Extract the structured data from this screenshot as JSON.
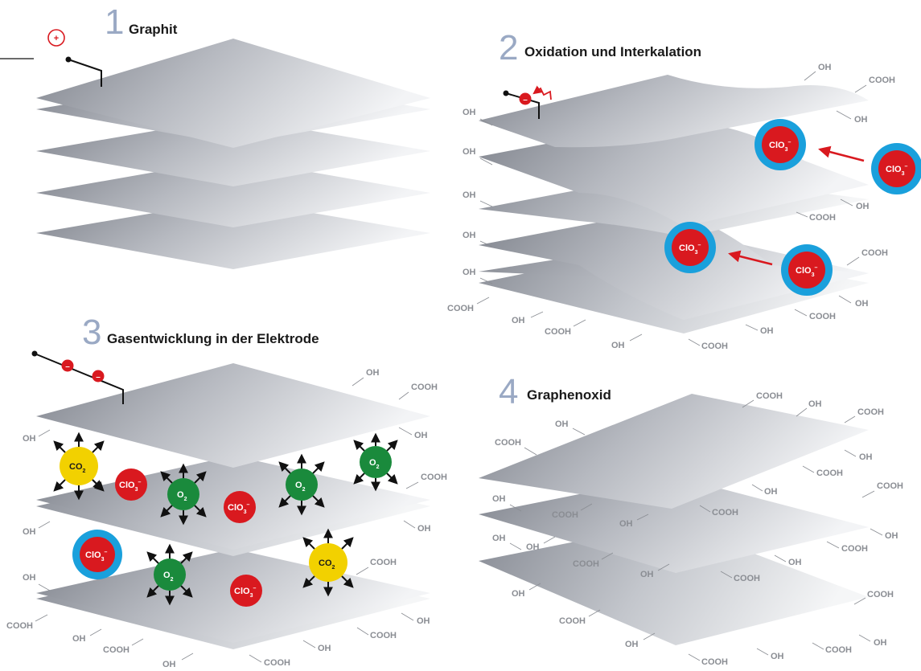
{
  "colors": {
    "accent_number": "#9aa9c4",
    "oxide_red": "#d9191f",
    "halo_blue": "#1aa0dc",
    "oxygen_green": "#1a8a3c",
    "co2_yellow": "#f2d100",
    "label_gray": "#8a8d93"
  },
  "panels": [
    {
      "number": "1",
      "title": "Graphit"
    },
    {
      "number": "2",
      "title": "Oxidation und Interkalation"
    },
    {
      "number": "3",
      "title": "Gasentwicklung in der Elektrode"
    },
    {
      "number": "4",
      "title": "Graphenoxid"
    }
  ],
  "charges": {
    "plus": "+",
    "minus": "–"
  },
  "ions": {
    "chlorate": {
      "base": "ClO",
      "sub": "3",
      "sup": "–"
    },
    "oxygen": {
      "base": "O",
      "sub": "2"
    },
    "co2": {
      "base": "CO",
      "sub": "2"
    }
  },
  "groups": {
    "hydroxyl": "OH",
    "carboxyl": "COOH"
  }
}
